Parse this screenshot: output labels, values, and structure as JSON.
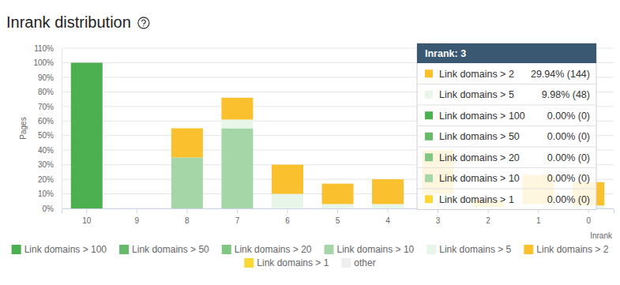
{
  "chart_data": {
    "type": "bar",
    "stacked": true,
    "title": "Inrank distribution",
    "x_label": "Inrank",
    "y_label": "Pages",
    "categories": [
      "10",
      "9",
      "8",
      "7",
      "6",
      "5",
      "4",
      "3",
      "2",
      "1",
      "0"
    ],
    "ylim": [
      0,
      110
    ],
    "yticks": [
      {
        "value": 0,
        "label": "0%"
      },
      {
        "value": 10,
        "label": "10%"
      },
      {
        "value": 20,
        "label": "20%"
      },
      {
        "value": 30,
        "label": "30%"
      },
      {
        "value": 40,
        "label": "40%"
      },
      {
        "value": 50,
        "label": "50%"
      },
      {
        "value": 60,
        "label": "60%"
      },
      {
        "value": 70,
        "label": "70%"
      },
      {
        "value": 80,
        "label": "80%"
      },
      {
        "value": 90,
        "label": "90%"
      },
      {
        "value": 100,
        "label": "100%"
      },
      {
        "value": 110,
        "label": "110%"
      }
    ],
    "grid": true,
    "legend": "bottom",
    "series": [
      {
        "name": "Link domains > 100",
        "color": "#4caf50",
        "values": [
          100,
          0,
          0,
          0,
          0,
          0,
          0,
          0,
          0,
          0,
          0
        ]
      },
      {
        "name": "Link domains > 50",
        "color": "#66bb6a",
        "values": [
          0,
          0,
          0,
          0,
          0,
          0,
          0,
          0,
          0,
          0,
          0
        ]
      },
      {
        "name": "Link domains > 20",
        "color": "#81c784",
        "values": [
          0,
          0,
          0,
          0,
          0,
          0,
          0,
          0,
          0,
          0,
          0
        ]
      },
      {
        "name": "Link domains > 10",
        "color": "#a5d6a7",
        "values": [
          0,
          0,
          35,
          55,
          0,
          0,
          0,
          0,
          0,
          0,
          0
        ]
      },
      {
        "name": "Link domains > 5",
        "color": "#e8f5e9",
        "values": [
          0,
          0,
          0,
          6,
          10,
          3,
          3,
          9.98,
          1,
          3,
          2
        ]
      },
      {
        "name": "Link domains > 2",
        "color": "#fbc02d",
        "values": [
          0,
          0,
          20,
          15,
          20,
          14,
          17,
          29.94,
          5,
          20,
          16
        ]
      },
      {
        "name": "Link domains > 1",
        "color": "#fdd835",
        "values": [
          0,
          0,
          0,
          0,
          0,
          0,
          0,
          0,
          0,
          0,
          0
        ]
      },
      {
        "name": "other",
        "color": "#eeeeee",
        "values": [
          0,
          0,
          0,
          0,
          0,
          0,
          0,
          0,
          0,
          0,
          0
        ]
      }
    ],
    "tooltip": {
      "title": "Inrank: 3",
      "rows": [
        {
          "name": "Link domains > 2",
          "label": "29.94% (144)"
        },
        {
          "name": "Link domains > 5",
          "label": "9.98% (48)"
        },
        {
          "name": "Link domains > 100",
          "label": "0.00% (0)"
        },
        {
          "name": "Link domains > 50",
          "label": "0.00% (0)"
        },
        {
          "name": "Link domains > 20",
          "label": "0.00% (0)"
        },
        {
          "name": "Link domains > 10",
          "label": "0.00% (0)"
        },
        {
          "name": "Link domains > 1",
          "label": "0.00% (0)"
        }
      ]
    }
  }
}
